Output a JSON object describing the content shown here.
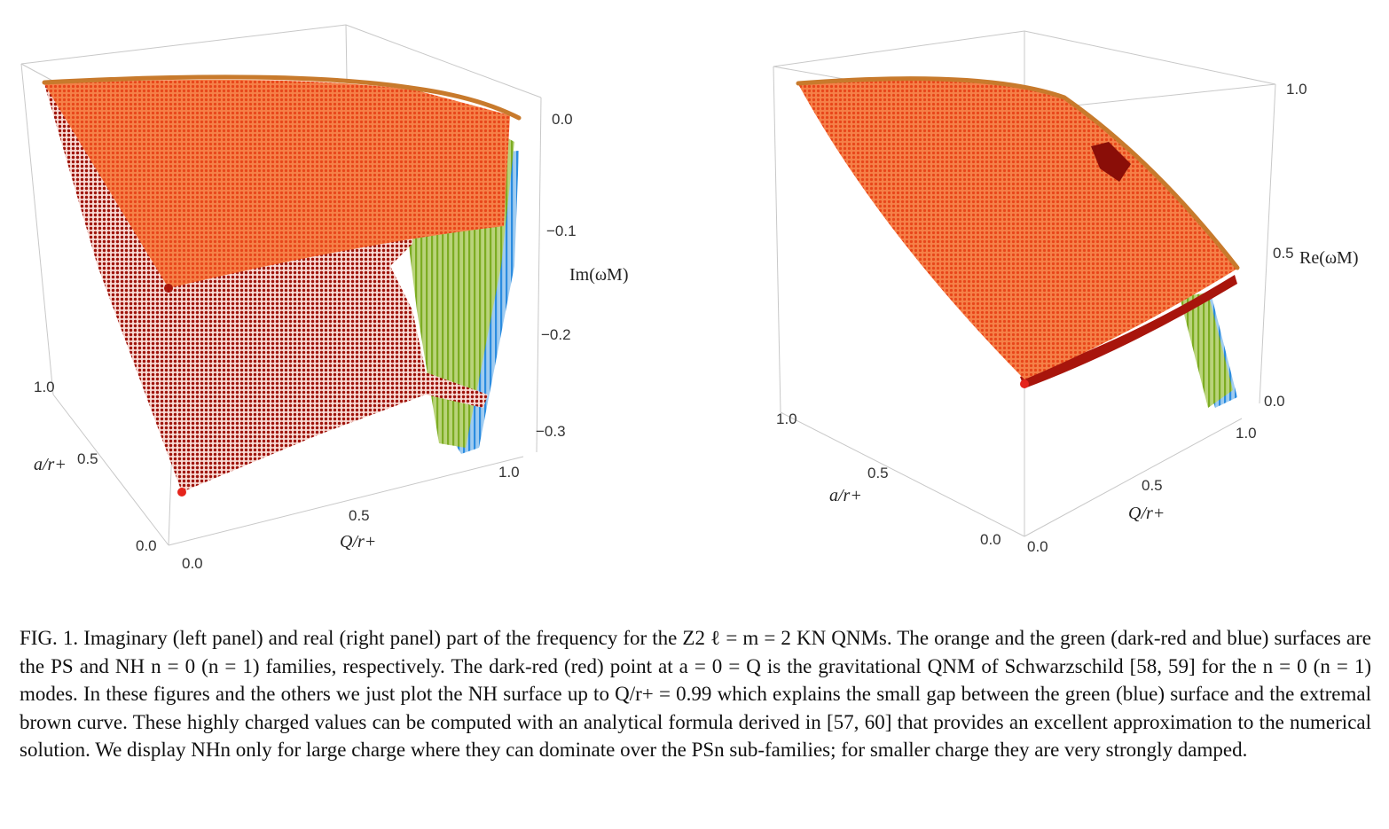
{
  "left_panel": {
    "z_axis_label": "Im(ωM)",
    "z_ticks": [
      "0.0",
      "−0.1",
      "−0.2",
      "−0.3"
    ],
    "a_axis_label": "a/r+",
    "a_ticks": [
      "1.0",
      "0.5",
      "0.0"
    ],
    "q_axis_label": "Q/r+",
    "q_ticks": [
      "0.0",
      "0.5",
      "1.0"
    ]
  },
  "right_panel": {
    "z_axis_label": "Re(ωM)",
    "z_ticks": [
      "1.0",
      "0.5",
      "0.0"
    ],
    "a_axis_label": "a/r+",
    "a_ticks": [
      "1.0",
      "0.5",
      "0.0"
    ],
    "q_axis_label": "Q/r+",
    "q_ticks": [
      "1.0",
      "0.5",
      "0.0"
    ]
  },
  "colors": {
    "ps_n0": "#f15a24",
    "ps_n1": "#a8150c",
    "nh_n0": "#7cac22",
    "nh_n1": "#2b8ce0",
    "extremal": "#c87a2c",
    "point_n0": "#a8150c",
    "point_n1": "#e5241c"
  },
  "caption": {
    "lead": "FIG. 1.",
    "text": "Imaginary (left panel) and real (right panel) part of the frequency for the Z2 ℓ = m = 2 KN QNMs. The orange and the green (dark-red and blue) surfaces are the PS and NH n = 0 (n = 1) families, respectively. The dark-red (red) point at a = 0 = Q is the gravitational QNM of Schwarzschild [58, 59] for the n = 0 (n = 1) modes. In these figures and the others we just plot the NH surface up to Q/r+ = 0.99 which explains the small gap between the green (blue) surface and the extremal brown curve. These highly charged values can be computed with an analytical formula derived in [57, 60] that provides an excellent approximation to the numerical solution. We display NHn only for large charge where they can dominate over the PSn sub-families; for smaller charge they are very strongly damped."
  }
}
